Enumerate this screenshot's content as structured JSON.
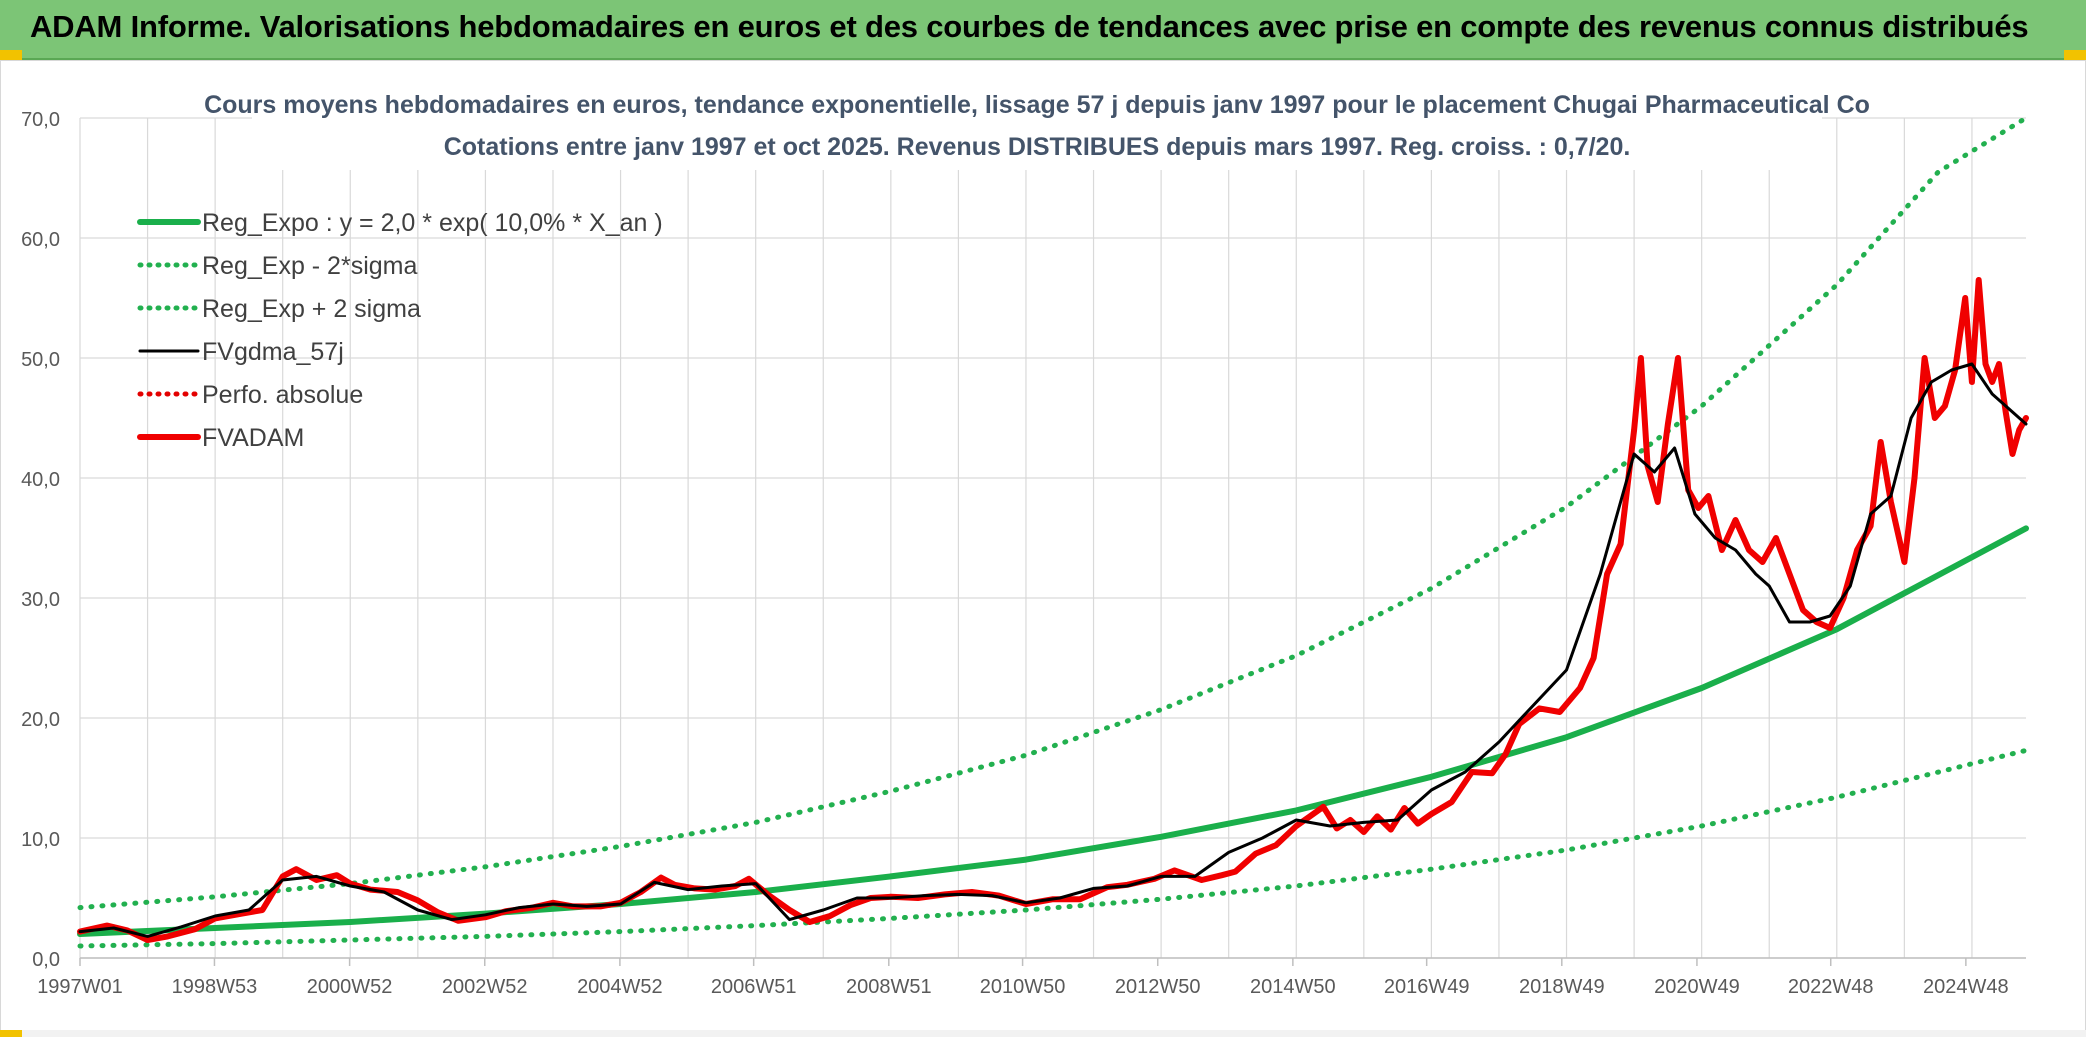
{
  "banner": {
    "title": "ADAM Informe. Valorisations hebdomadaires en euros et des courbes de tendances avec prise en compte des revenus connus distribués"
  },
  "colors": {
    "banner_bg": "#7cc576",
    "reg_expo": "#1aaf4b",
    "band": "#22b04f",
    "fvgdma": "#000000",
    "perfo": "#e30000",
    "fvadam": "#f00000",
    "grid": "#d9d9d9"
  },
  "chart_data": {
    "type": "line",
    "title": "Cours moyens hebdomadaires en euros, tendance exponentielle, lissage 57 j depuis janv 1997 pour le placement Chugai Pharmaceutical Co",
    "subtitle": "Cotations entre janv 1997 et oct 2025. Revenus DISTRIBUES depuis mars 1997. Reg. croiss. : 0,7/20.",
    "xlabel": "",
    "ylabel": "",
    "ylim": [
      0,
      70
    ],
    "yticks": [
      "0,0",
      "10,0",
      "20,0",
      "30,0",
      "40,0",
      "50,0",
      "60,0",
      "70,0"
    ],
    "xlim": [
      1997.0,
      2025.8
    ],
    "xticks": [
      {
        "x": 1997.0,
        "label": "1997W01"
      },
      {
        "x": 1998.99,
        "label": "1998W53"
      },
      {
        "x": 2000.99,
        "label": "2000W52"
      },
      {
        "x": 2002.99,
        "label": "2002W52"
      },
      {
        "x": 2004.99,
        "label": "2004W52"
      },
      {
        "x": 2006.97,
        "label": "2006W51"
      },
      {
        "x": 2008.97,
        "label": "2008W51"
      },
      {
        "x": 2010.95,
        "label": "2010W50"
      },
      {
        "x": 2012.95,
        "label": "2012W50"
      },
      {
        "x": 2014.95,
        "label": "2014W50"
      },
      {
        "x": 2016.93,
        "label": "2016W49"
      },
      {
        "x": 2018.93,
        "label": "2018W49"
      },
      {
        "x": 2020.93,
        "label": "2020W49"
      },
      {
        "x": 2022.91,
        "label": "2022W48"
      },
      {
        "x": 2024.91,
        "label": "2024W48"
      }
    ],
    "grid": true,
    "legend_position": "top-left",
    "series": [
      {
        "name": "Reg_Expo : y = 2,0 * exp( 10,0% *  X_an )",
        "style": "solid-thick",
        "color": "#1aaf4b",
        "x": [
          1997.0,
          1999.0,
          2001.0,
          2003.0,
          2005.0,
          2007.0,
          2009.0,
          2011.0,
          2013.0,
          2015.0,
          2017.0,
          2019.0,
          2021.0,
          2023.0,
          2025.8
        ],
        "values": [
          2.0,
          2.5,
          3.0,
          3.7,
          4.5,
          5.5,
          6.8,
          8.2,
          10.1,
          12.3,
          15.1,
          18.4,
          22.5,
          27.4,
          35.8
        ]
      },
      {
        "name": "Reg_Exp - 2*sigma",
        "style": "dotted",
        "color": "#22b04f",
        "x": [
          1997.0,
          1999.0,
          2001.0,
          2003.0,
          2005.0,
          2007.0,
          2009.0,
          2011.0,
          2013.0,
          2015.0,
          2017.0,
          2019.0,
          2021.0,
          2023.0,
          2025.8
        ],
        "values": [
          1.0,
          1.2,
          1.5,
          1.8,
          2.2,
          2.7,
          3.3,
          4.0,
          4.9,
          6.0,
          7.4,
          9.0,
          11.0,
          13.4,
          17.3
        ]
      },
      {
        "name": "Reg_Exp + 2 sigma",
        "style": "dotted",
        "color": "#22b04f",
        "x": [
          1997.0,
          1999.0,
          2001.0,
          2003.0,
          2005.0,
          2007.0,
          2009.0,
          2011.0,
          2013.0,
          2015.0,
          2017.0,
          2019.0,
          2021.0,
          2023.0,
          2024.5,
          2025.8
        ],
        "values": [
          4.2,
          5.1,
          6.2,
          7.6,
          9.3,
          11.3,
          13.9,
          16.9,
          20.7,
          25.2,
          30.8,
          37.6,
          46.0,
          56.1,
          65.5,
          70.0
        ]
      },
      {
        "name": "FVgdma_57j",
        "style": "solid",
        "color": "#000000",
        "x": [
          1997.0,
          1997.5,
          1998.0,
          1998.5,
          1999.0,
          1999.5,
          2000.0,
          2000.5,
          2001.0,
          2001.5,
          2002.0,
          2002.5,
          2003.0,
          2003.5,
          2004.0,
          2004.5,
          2005.0,
          2005.5,
          2006.0,
          2006.5,
          2007.0,
          2007.5,
          2008.0,
          2008.5,
          2009.0,
          2009.5,
          2010.0,
          2010.5,
          2011.0,
          2011.5,
          2012.0,
          2012.5,
          2013.0,
          2013.5,
          2014.0,
          2014.5,
          2015.0,
          2015.5,
          2016.0,
          2016.5,
          2017.0,
          2017.5,
          2018.0,
          2018.5,
          2019.0,
          2019.5,
          2020.0,
          2020.3,
          2020.6,
          2020.9,
          2021.2,
          2021.5,
          2021.8,
          2022.0,
          2022.3,
          2022.6,
          2022.9,
          2023.2,
          2023.5,
          2023.8,
          2024.1,
          2024.4,
          2024.7,
          2025.0,
          2025.3,
          2025.8
        ],
        "values": [
          2.2,
          2.5,
          1.8,
          2.6,
          3.5,
          4.0,
          6.5,
          6.8,
          6.0,
          5.5,
          4.0,
          3.2,
          3.6,
          4.2,
          4.5,
          4.3,
          4.5,
          6.3,
          5.7,
          6.0,
          6.2,
          3.2,
          4.0,
          5.0,
          5.0,
          5.2,
          5.3,
          5.2,
          4.6,
          5.0,
          5.8,
          6.0,
          6.8,
          6.8,
          8.8,
          10.0,
          11.5,
          11.0,
          11.3,
          11.5,
          14.0,
          15.5,
          18.0,
          21.0,
          24.0,
          32.0,
          42.0,
          40.5,
          42.5,
          37.0,
          35.0,
          34.0,
          32.0,
          31.0,
          28.0,
          28.0,
          28.5,
          31.0,
          37.0,
          38.5,
          45.0,
          48.0,
          49.0,
          49.5,
          47.0,
          44.5
        ]
      },
      {
        "name": "Perfo. absolue",
        "style": "dotted",
        "color": "#e30000",
        "x": [],
        "values": []
      },
      {
        "name": "FVADAM",
        "style": "solid-thick",
        "color": "#f00000",
        "x": [
          1997.0,
          1997.4,
          1997.7,
          1998.0,
          1998.3,
          1998.7,
          1999.0,
          1999.4,
          1999.7,
          2000.0,
          2000.2,
          2000.5,
          2000.8,
          2001.0,
          2001.3,
          2001.7,
          2002.0,
          2002.3,
          2002.6,
          2003.0,
          2003.3,
          2003.7,
          2004.0,
          2004.3,
          2004.7,
          2005.0,
          2005.3,
          2005.6,
          2005.8,
          2006.1,
          2006.4,
          2006.7,
          2006.9,
          2007.2,
          2007.5,
          2007.8,
          2008.1,
          2008.4,
          2008.7,
          2009.0,
          2009.4,
          2009.8,
          2010.2,
          2010.6,
          2011.0,
          2011.4,
          2011.8,
          2012.2,
          2012.5,
          2012.9,
          2013.2,
          2013.6,
          2013.9,
          2014.1,
          2014.4,
          2014.7,
          2015.0,
          2015.2,
          2015.4,
          2015.6,
          2015.8,
          2016.0,
          2016.2,
          2016.4,
          2016.6,
          2016.8,
          2017.0,
          2017.3,
          2017.6,
          2017.9,
          2018.1,
          2018.3,
          2018.6,
          2018.9,
          2019.2,
          2019.4,
          2019.6,
          2019.8,
          2020.0,
          2020.1,
          2020.2,
          2020.35,
          2020.5,
          2020.65,
          2020.8,
          2020.95,
          2021.1,
          2021.3,
          2021.5,
          2021.7,
          2021.9,
          2022.1,
          2022.3,
          2022.5,
          2022.7,
          2022.9,
          2023.1,
          2023.3,
          2023.5,
          2023.65,
          2023.8,
          2024.0,
          2024.15,
          2024.3,
          2024.45,
          2024.6,
          2024.75,
          2024.9,
          2025.0,
          2025.1,
          2025.2,
          2025.3,
          2025.4,
          2025.5,
          2025.6,
          2025.7,
          2025.8
        ],
        "values": [
          2.2,
          2.7,
          2.3,
          1.5,
          1.8,
          2.4,
          3.3,
          3.7,
          4.0,
          6.8,
          7.4,
          6.5,
          6.9,
          6.2,
          5.7,
          5.5,
          4.8,
          3.8,
          3.1,
          3.4,
          3.9,
          4.2,
          4.6,
          4.3,
          4.3,
          4.6,
          5.5,
          6.7,
          6.1,
          5.8,
          5.7,
          6.0,
          6.6,
          5.2,
          4.0,
          3.0,
          3.5,
          4.4,
          5.0,
          5.1,
          5.0,
          5.3,
          5.5,
          5.2,
          4.5,
          4.9,
          4.9,
          5.9,
          6.1,
          6.6,
          7.3,
          6.5,
          6.9,
          7.2,
          8.7,
          9.4,
          11.0,
          11.8,
          12.6,
          10.8,
          11.5,
          10.5,
          11.8,
          10.7,
          12.5,
          11.2,
          12.0,
          13.0,
          15.5,
          15.4,
          17.0,
          19.5,
          20.8,
          20.5,
          22.5,
          25.0,
          32.0,
          34.5,
          44.0,
          50.0,
          41.0,
          38.0,
          44.5,
          50.0,
          39.0,
          37.5,
          38.5,
          34.0,
          36.5,
          34.0,
          33.0,
          35.0,
          32.0,
          29.0,
          28.0,
          27.5,
          30.0,
          34.0,
          36.0,
          43.0,
          38.0,
          33.0,
          40.0,
          50.0,
          45.0,
          46.0,
          49.0,
          55.0,
          48.0,
          56.5,
          49.5,
          48.0,
          49.5,
          45.5,
          42.0,
          44.0,
          45.0
        ]
      }
    ]
  }
}
